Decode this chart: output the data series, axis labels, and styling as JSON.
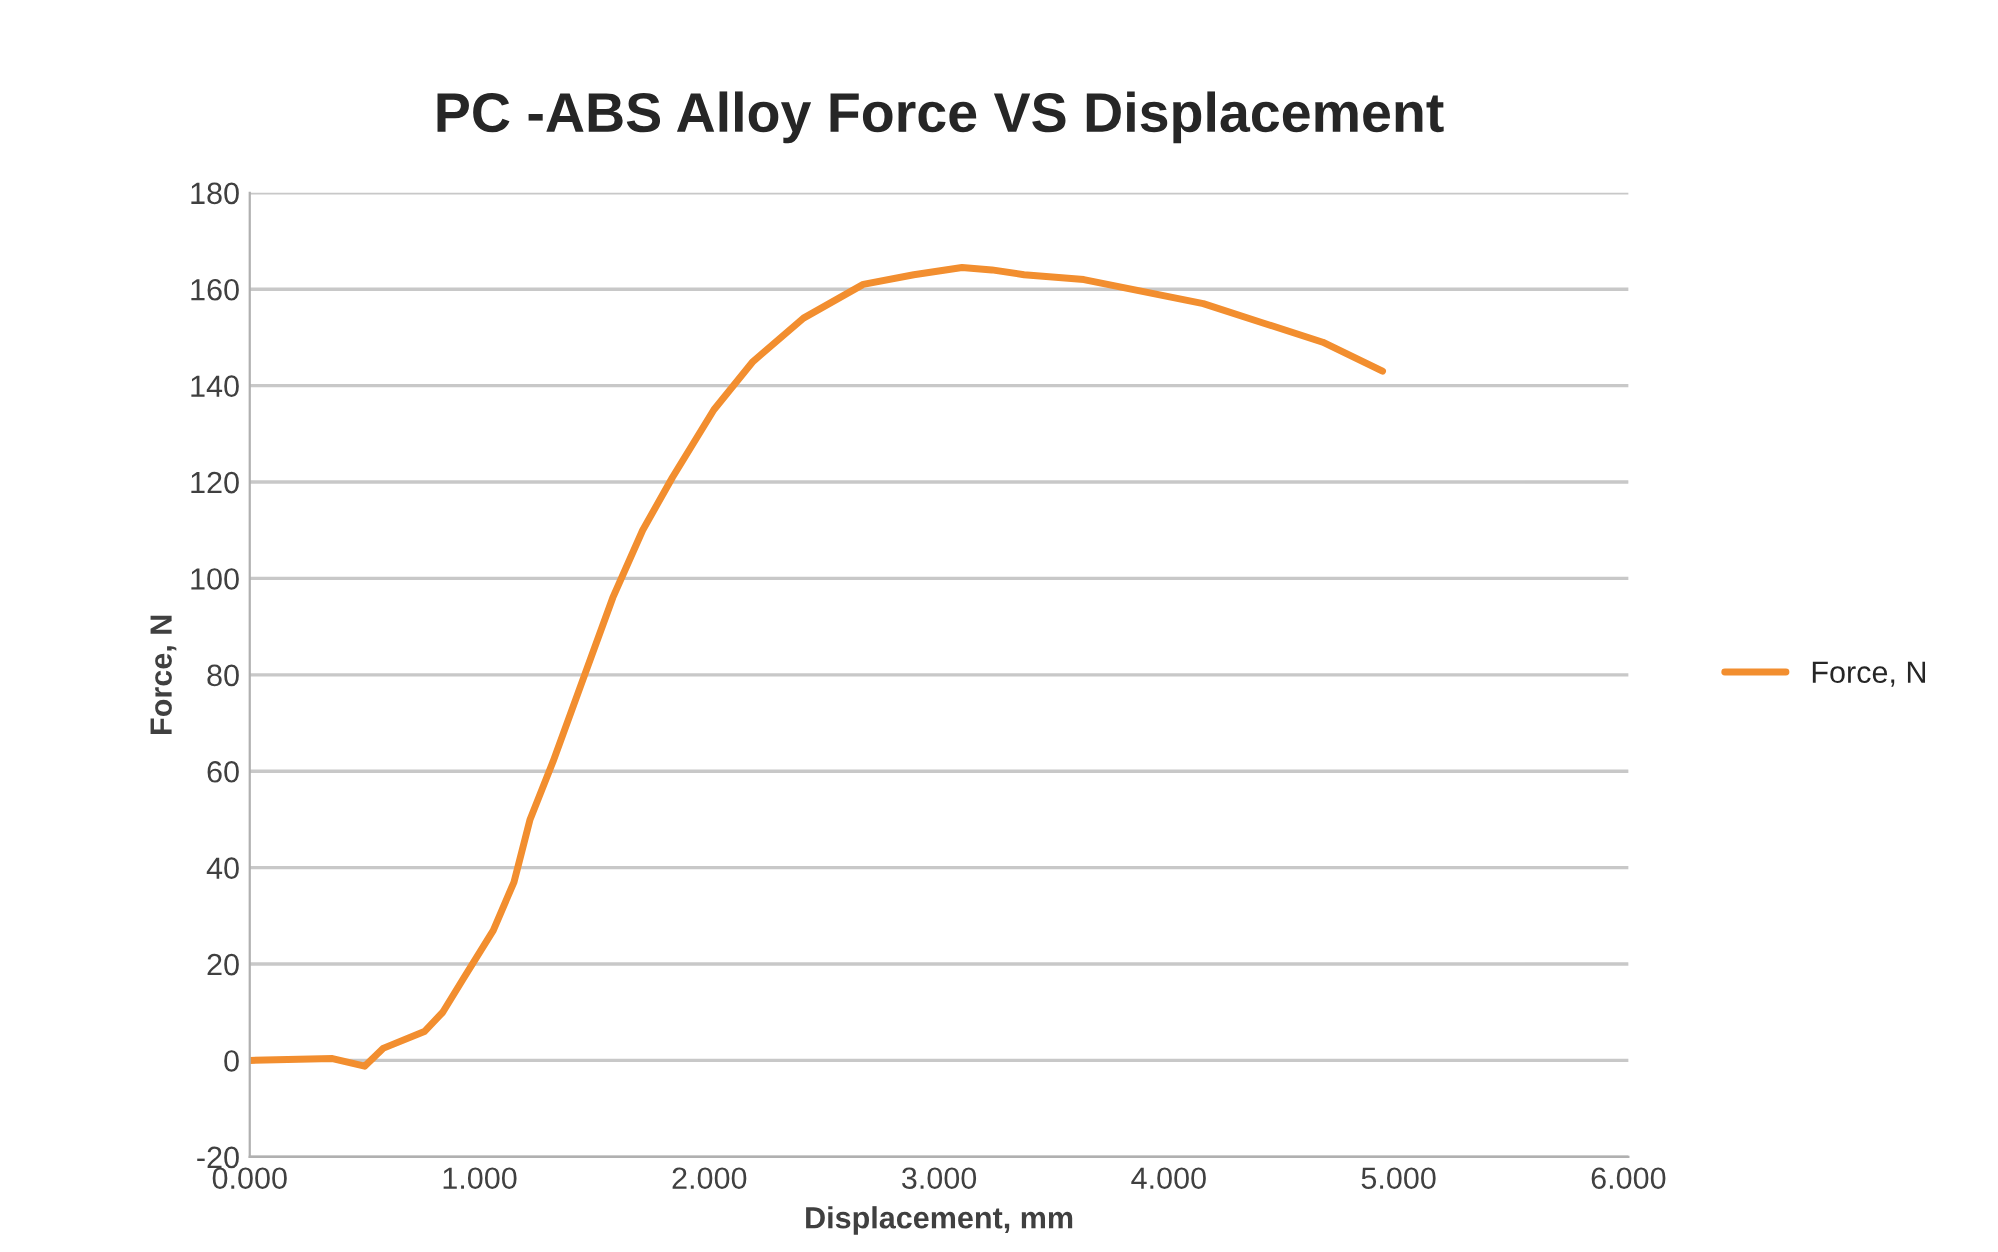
{
  "chart_data": {
    "type": "line",
    "title": "PC -ABS Alloy Force VS Displacement",
    "xlabel": "Displacement, mm",
    "ylabel": "Force, N",
    "x": [
      0,
      0.36,
      0.5,
      0.58,
      0.76,
      0.84,
      0.93,
      1.06,
      1.15,
      1.22,
      1.32,
      1.45,
      1.58,
      1.71,
      1.84,
      2.02,
      2.19,
      2.41,
      2.67,
      2.89,
      3.1,
      3.23,
      3.37,
      3.63,
      3.89,
      4.15,
      4.41,
      4.67,
      4.93
    ],
    "series": [
      {
        "name": "Force, N",
        "color": "#f28e2f",
        "values": [
          0,
          0.4,
          -1.2,
          2.5,
          6,
          10,
          17,
          27,
          37,
          50,
          62,
          79,
          96,
          110,
          121,
          135,
          145,
          154,
          161,
          163,
          164.5,
          164,
          163,
          162,
          159.5,
          157,
          153,
          149,
          143
        ]
      }
    ],
    "xlim": [
      0,
      6
    ],
    "xticks": [
      {
        "value": 0,
        "label": "0.000"
      },
      {
        "value": 1,
        "label": "1.000"
      },
      {
        "value": 2,
        "label": "2.000"
      },
      {
        "value": 3,
        "label": "3.000"
      },
      {
        "value": 4,
        "label": "4.000"
      },
      {
        "value": 5,
        "label": "5.000"
      },
      {
        "value": 6,
        "label": "6.000"
      }
    ],
    "ylim": [
      -20,
      180
    ],
    "yticks": [
      -20,
      0,
      20,
      40,
      60,
      80,
      100,
      120,
      140,
      160,
      180
    ],
    "grid": "y",
    "legend": "right",
    "marker": "none",
    "line_style": "solid"
  }
}
